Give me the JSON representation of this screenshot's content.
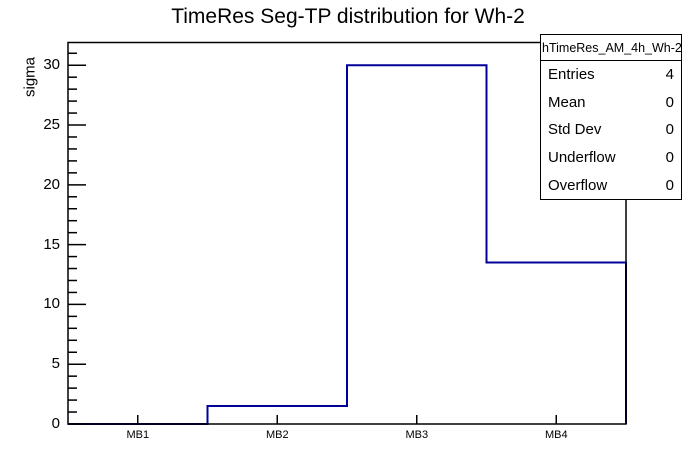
{
  "title": "TimeRes Seg-TP distribution for Wh-2",
  "chart_data": {
    "type": "bar",
    "style": "step-outline-histogram",
    "title": "TimeRes Seg-TP distribution for Wh-2",
    "categories": [
      "MB1",
      "MB2",
      "MB3",
      "MB4"
    ],
    "values": [
      0,
      1.5,
      30,
      13.5
    ],
    "xlabel": "",
    "ylabel": "sigma",
    "ylim": [
      0,
      31.9
    ],
    "yticks": [
      0,
      5,
      10,
      15,
      20,
      25,
      30
    ],
    "minor_tick_step": 1,
    "grid": false,
    "legend": false,
    "line_color": "#000099",
    "frame_color": "#000000"
  },
  "stats_box": {
    "header": "hTimeRes_AM_4h_Wh-2",
    "rows": [
      {
        "label": "Entries",
        "value": "4"
      },
      {
        "label": "Mean",
        "value": "0"
      },
      {
        "label": "Std Dev",
        "value": "0"
      },
      {
        "label": "Underflow",
        "value": "0"
      },
      {
        "label": "Overflow",
        "value": "0"
      }
    ]
  }
}
